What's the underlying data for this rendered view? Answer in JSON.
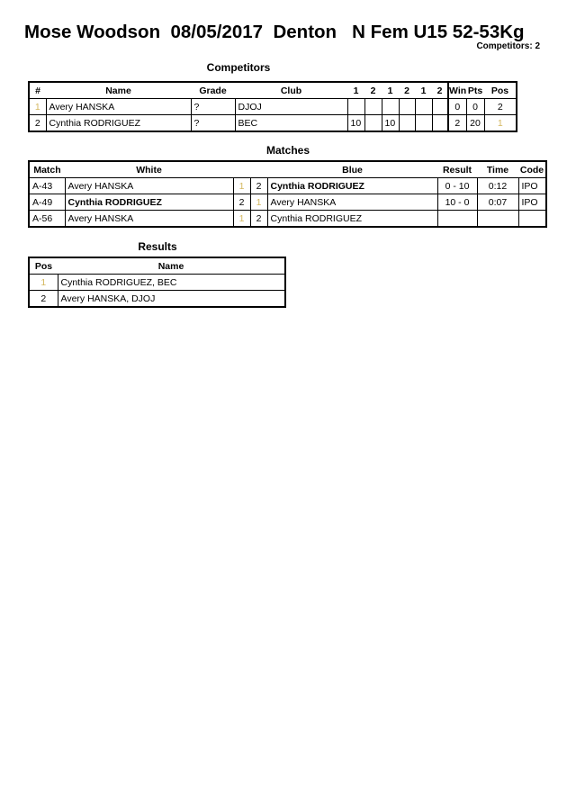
{
  "header": {
    "title": "Mose Woodson  08/05/2017  Denton   N Fem U15 52-53Kg",
    "competitors_count": "Competitors: 2"
  },
  "competitors": {
    "title": "Competitors",
    "columns": [
      "#",
      "Name",
      "Grade",
      "Club",
      "1",
      "2",
      "1",
      "2",
      "1",
      "2",
      "Wins",
      "Pts",
      "Pos"
    ],
    "rows": [
      {
        "num": "1",
        "name": "Avery HANSKA",
        "grade": "?",
        "club": "DJOJ",
        "scores": [
          "",
          "",
          "",
          "",
          "",
          ""
        ],
        "wins": "0",
        "pts": "0",
        "pos": "2"
      },
      {
        "num": "2",
        "name": "Cynthia RODRIGUEZ",
        "grade": "?",
        "club": "BEC",
        "scores": [
          "10",
          "",
          "10",
          "",
          "",
          ""
        ],
        "wins": "2",
        "pts": "20",
        "pos": "1"
      }
    ]
  },
  "matches": {
    "title": "Matches",
    "columns": [
      "Match",
      "White",
      "Blue",
      "Result",
      "Time",
      "Code"
    ],
    "rows": [
      {
        "match": "A-43",
        "white": "Avery HANSKA",
        "white_num": "1",
        "blue_num": "2",
        "blue": "Cynthia RODRIGUEZ",
        "winner": "blue",
        "result": "0 - 10",
        "time": "0:12",
        "code": "IPO"
      },
      {
        "match": "A-49",
        "white": "Cynthia RODRIGUEZ",
        "white_num": "2",
        "blue_num": "1",
        "blue": "Avery HANSKA",
        "winner": "white",
        "result": "10 - 0",
        "time": "0:07",
        "code": "IPO"
      },
      {
        "match": "A-56",
        "white": "Avery HANSKA",
        "white_num": "1",
        "blue_num": "2",
        "blue": "Cynthia RODRIGUEZ",
        "winner": "",
        "result": "",
        "time": "",
        "code": ""
      }
    ]
  },
  "results": {
    "title": "Results",
    "columns": [
      "Pos",
      "Name"
    ],
    "rows": [
      {
        "pos": "1",
        "name": "Cynthia RODRIGUEZ, BEC"
      },
      {
        "pos": "2",
        "name": "Avery HANSKA, DJOJ"
      }
    ]
  },
  "colors": {
    "first_place_marker": "#d4b860"
  }
}
